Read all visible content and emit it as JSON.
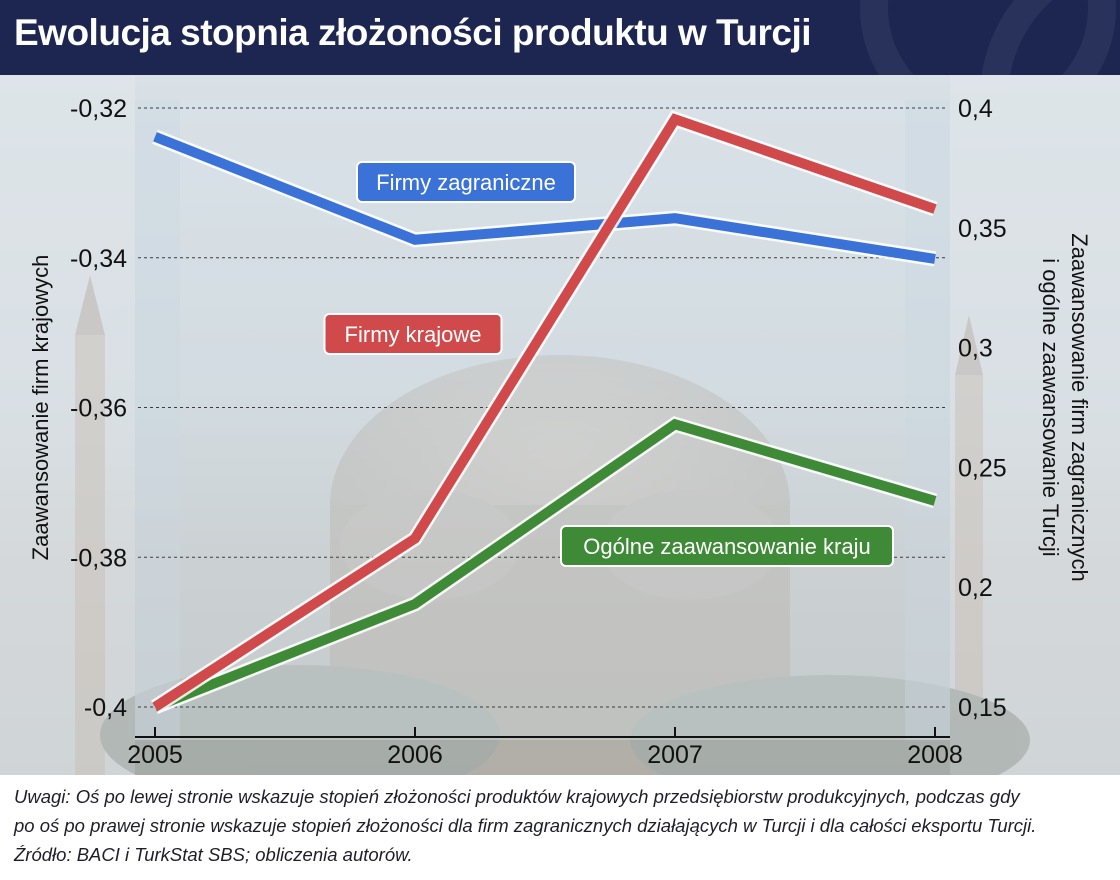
{
  "header": {
    "title": "Ewolucja stopnia złożoności produktu w Turcji"
  },
  "colors": {
    "header_bg": "#1c2650",
    "blue": "#3a72d8",
    "red": "#d04a4c",
    "green": "#3f8a37"
  },
  "chart_data": {
    "type": "line",
    "title": "Ewolucja stopnia złożoności produktu w Turcji",
    "x": [
      "2005",
      "2006",
      "2007",
      "2008"
    ],
    "left_axis": {
      "label": "Zaawansowanie firm krajowych",
      "ticks": [
        "-0,32",
        "-0,34",
        "-0,36",
        "-0,38",
        "-0,4"
      ],
      "tick_values": [
        -0.32,
        -0.34,
        -0.36,
        -0.38,
        -0.4
      ],
      "range": [
        -0.4,
        -0.32
      ]
    },
    "right_axis": {
      "label_line1": "Zaawansowanie firm zagranicznych",
      "label_line2": "i ogólne zaawansowanie Turcji",
      "ticks": [
        "0,4",
        "0,35",
        "0,3",
        "0,25",
        "0,2",
        "0,15"
      ],
      "tick_values": [
        0.4,
        0.35,
        0.3,
        0.25,
        0.2,
        0.15
      ],
      "range": [
        0.15,
        0.4
      ]
    },
    "series": [
      {
        "name": "Firmy zagraniczne",
        "axis": "right",
        "color": "#3a72d8",
        "values": [
          0.388,
          0.345,
          0.354,
          0.337
        ]
      },
      {
        "name": "Firmy krajowe",
        "axis": "left",
        "color": "#d04a4c",
        "values": [
          -0.4,
          -0.3775,
          -0.3215,
          -0.3335
        ]
      },
      {
        "name": "Ogólne zaawansowanie kraju",
        "axis": "right",
        "color": "#3f8a37",
        "values": [
          0.15,
          0.193,
          0.268,
          0.236
        ]
      }
    ],
    "grid": true
  },
  "notes": {
    "line1": "Uwagi: Oś po lewej stronie wskazuje stopień złożoności produktów krajowych przedsiębiorstw produkcyjnych, podczas gdy",
    "line2": "po oś po prawej stronie wskazuje stopień złożoności dla firm zagranicznych działających w Turcji i dla całości eksportu Turcji.",
    "line3": "Źródło: BACI i TurkStat SBS; obliczenia autorów."
  }
}
